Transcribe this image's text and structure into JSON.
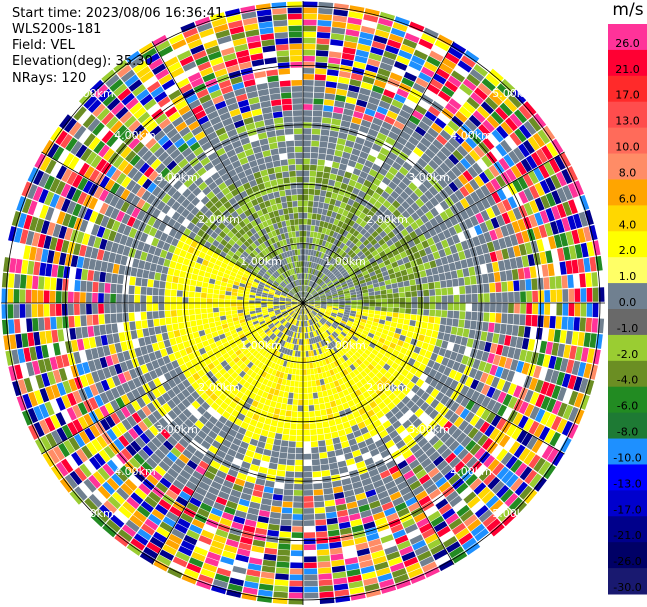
{
  "header": {
    "start_time": "Start time: 2023/08/06 16:36:41",
    "site": "WLS200s-181",
    "field": "Field: VEL",
    "elevation": "Elevation(deg): 35.30",
    "nrays": "NRays: 120"
  },
  "range_rings": {
    "labels": [
      "1.00km",
      "2.00km",
      "3.00km",
      "4.00km",
      "5.00km"
    ]
  },
  "colorbar": {
    "unit": "m/s",
    "bins": [
      {
        "label": "26.0",
        "color": "#ff3399"
      },
      {
        "label": "21.0",
        "color": "#ff0033"
      },
      {
        "label": "17.0",
        "color": "#ff2a2a"
      },
      {
        "label": "13.0",
        "color": "#ff4d4d"
      },
      {
        "label": "10.0",
        "color": "#ff6b5a"
      },
      {
        "label": "8.0",
        "color": "#ff8c66"
      },
      {
        "label": "6.0",
        "color": "#ffa500"
      },
      {
        "label": "4.0",
        "color": "#ffd700"
      },
      {
        "label": "2.0",
        "color": "#ffff00"
      },
      {
        "label": "1.0",
        "color": "#ffff66"
      },
      {
        "label": "0.0",
        "color": "#708090"
      },
      {
        "label": "-1.0",
        "color": "#696969"
      },
      {
        "label": "-2.0",
        "color": "#9acd32"
      },
      {
        "label": "-4.0",
        "color": "#6b8e23"
      },
      {
        "label": "-6.0",
        "color": "#228b22"
      },
      {
        "label": "-8.0",
        "color": "#1e7a34"
      },
      {
        "label": "-10.0",
        "color": "#1e90ff"
      },
      {
        "label": "-13.0",
        "color": "#0000ff"
      },
      {
        "label": "-17.0",
        "color": "#0000cd"
      },
      {
        "label": "-21.0",
        "color": "#00008b"
      },
      {
        "label": "-26.0",
        "color": "#000066"
      },
      {
        "label": "-30.0",
        "color": "#191970"
      }
    ]
  },
  "colors": {
    "ring": "#000000",
    "label": "#ffffff"
  }
}
